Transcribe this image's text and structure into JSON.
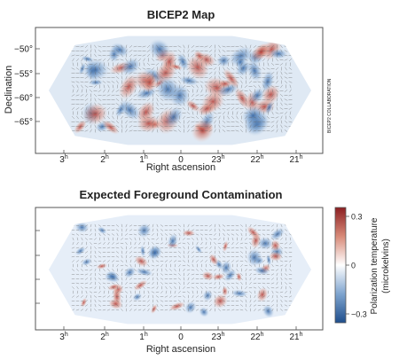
{
  "chart_data": [
    {
      "type": "heatmap",
      "title": "BICEP2 Map",
      "xlabel": "Right ascension",
      "ylabel": "Declination",
      "x_ticks": [
        {
          "base": "3",
          "sup": "h"
        },
        {
          "base": "2",
          "sup": "h"
        },
        {
          "base": "1",
          "sup": "h"
        },
        {
          "base": "0",
          "sup": ""
        },
        {
          "base": "23",
          "sup": "h"
        },
        {
          "base": "22",
          "sup": "h"
        },
        {
          "base": "21",
          "sup": "h"
        }
      ],
      "y_ticks": [
        "−50°",
        "−55°",
        "−60°",
        "−65°"
      ],
      "side_credit": "BICEP2 COLLABORATION"
    },
    {
      "type": "heatmap",
      "title": "Expected Foreground Contamination",
      "xlabel": "Right ascension",
      "x_ticks": [
        {
          "base": "3",
          "sup": "h"
        },
        {
          "base": "2",
          "sup": "h"
        },
        {
          "base": "1",
          "sup": "h"
        },
        {
          "base": "0",
          "sup": ""
        },
        {
          "base": "23",
          "sup": "h"
        },
        {
          "base": "22",
          "sup": "h"
        },
        {
          "base": "21",
          "sup": "h"
        }
      ],
      "colorbar": {
        "label_line1": "Polarization temperature",
        "label_line2": "(microkelvins)",
        "ticks": [
          "0.3",
          "0",
          "−0.3"
        ],
        "range": [
          -0.3,
          0.3
        ],
        "colors": [
          "#1f4e8c",
          "#ffffff",
          "#8c1f22"
        ]
      }
    }
  ]
}
